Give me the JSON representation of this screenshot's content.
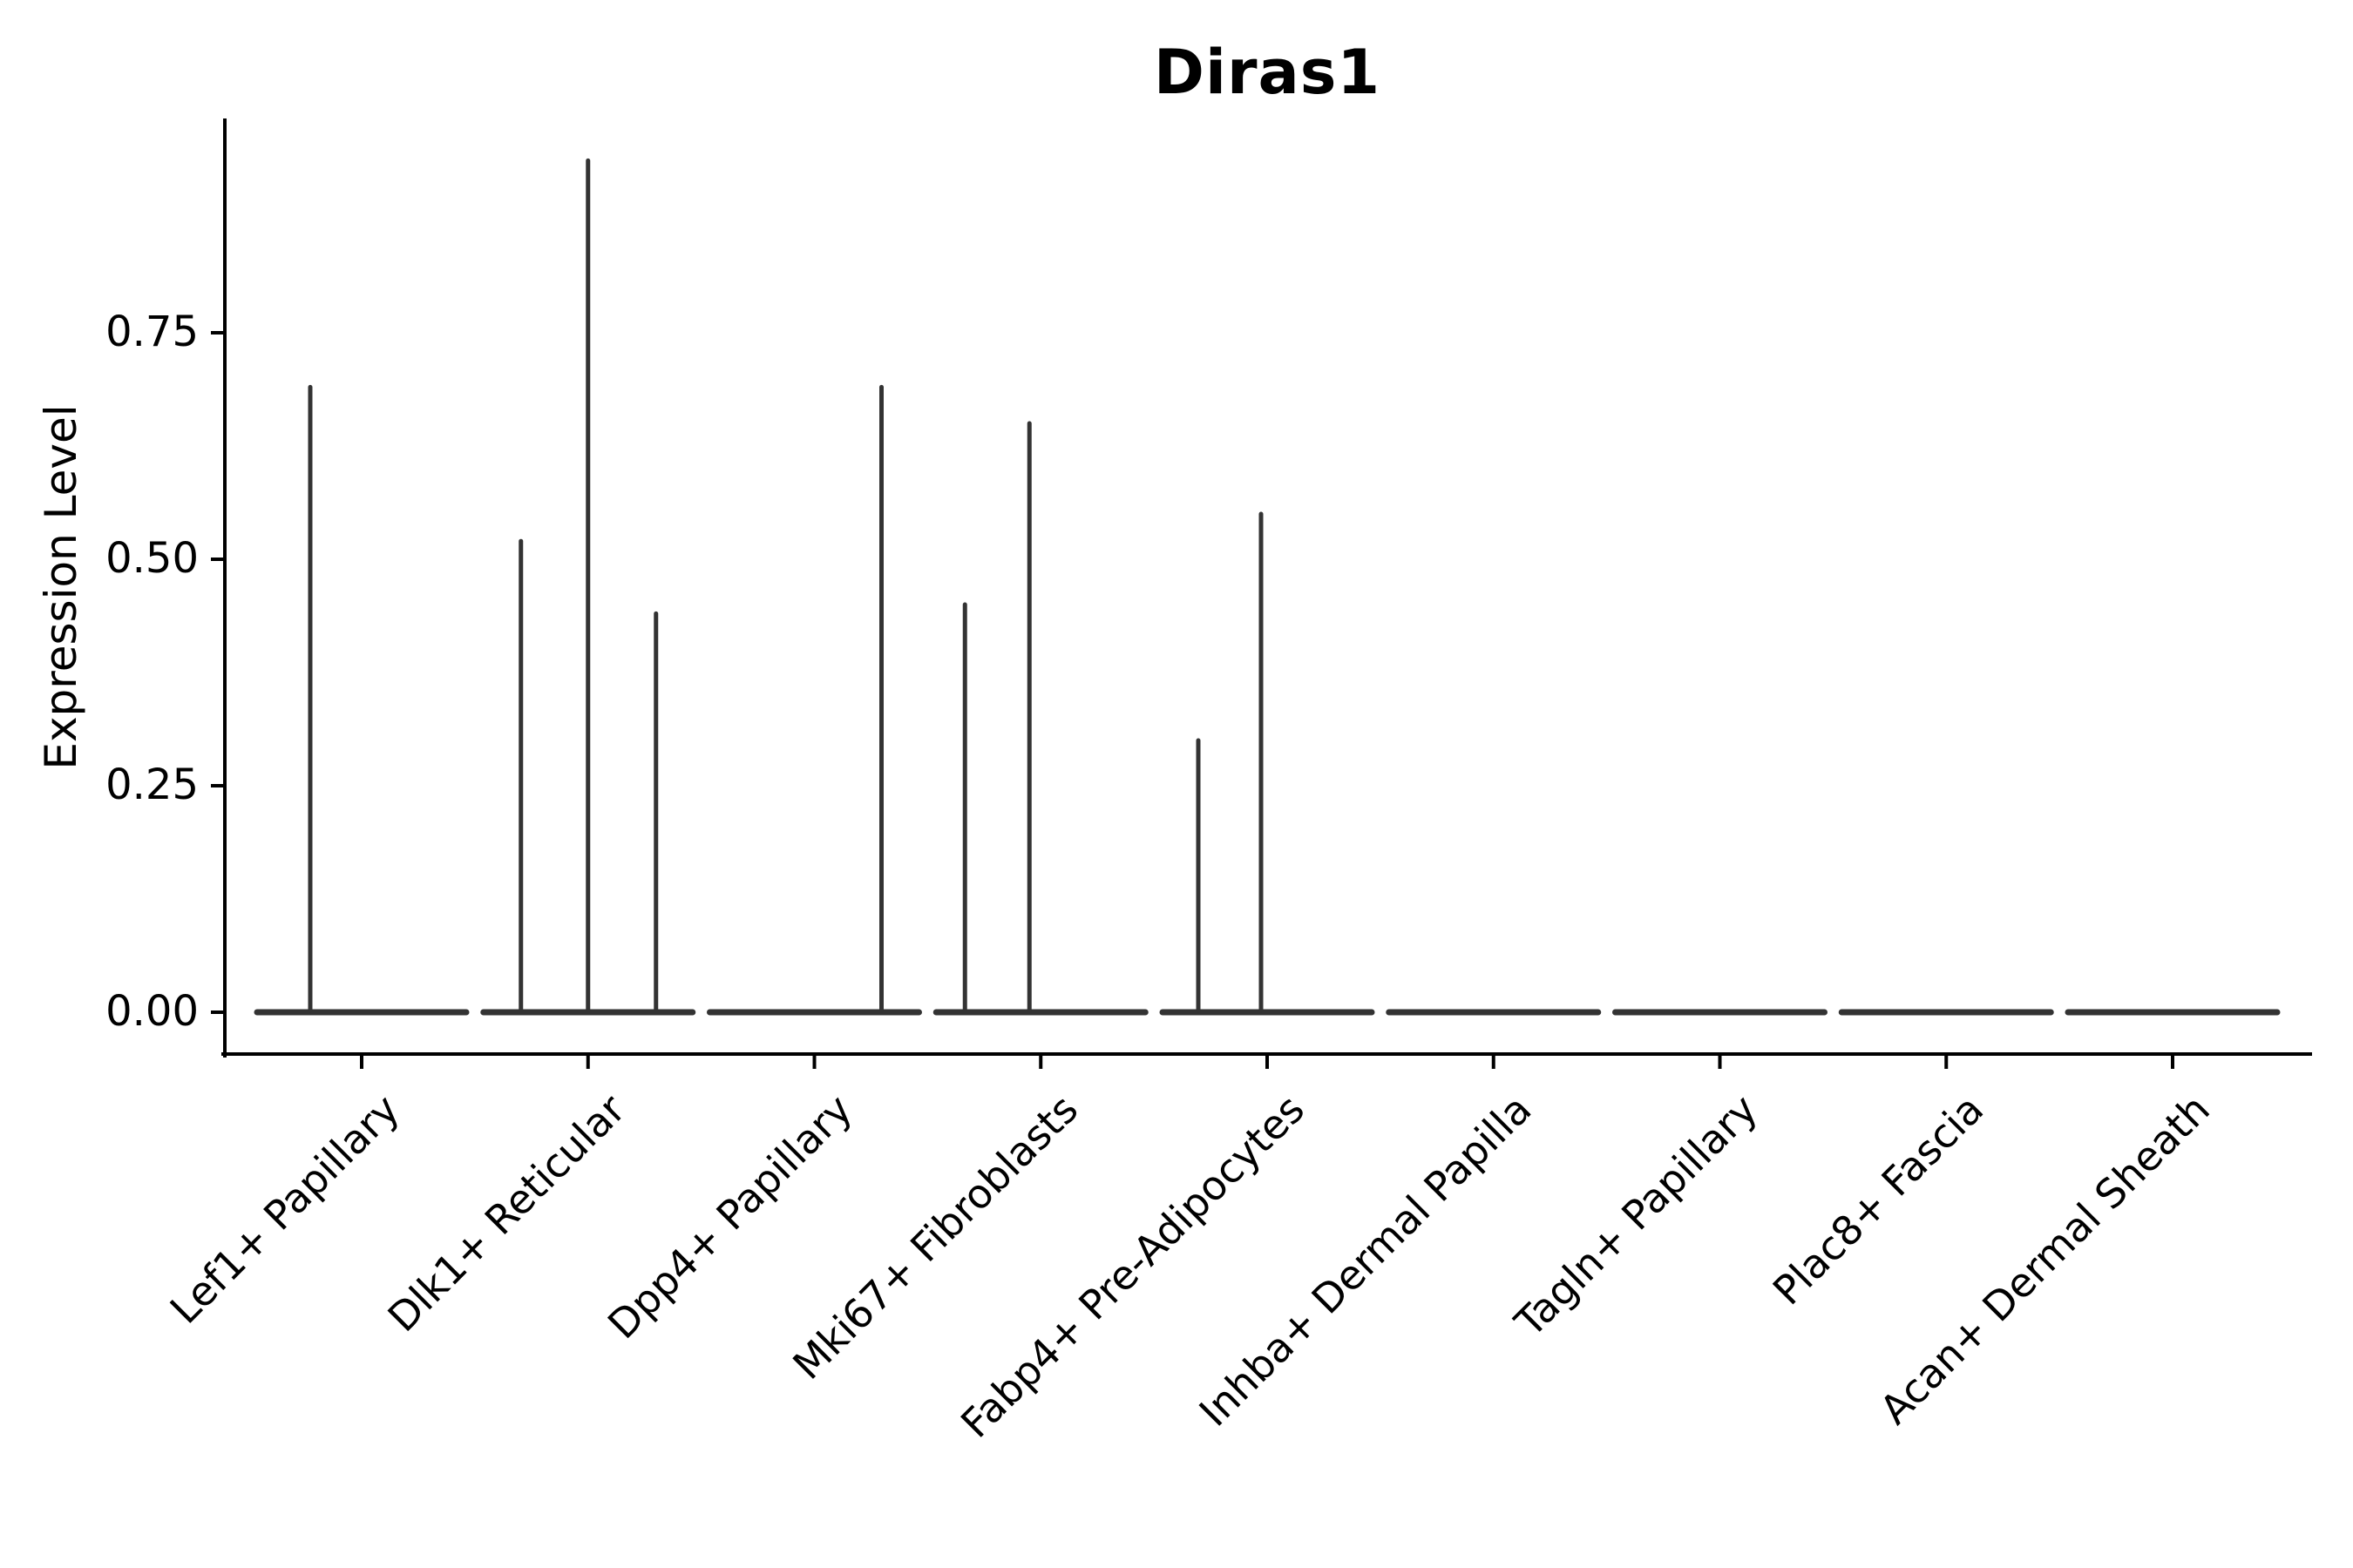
{
  "figure": {
    "background": "#ffffff"
  },
  "chart_data": {
    "type": "violin",
    "title": "Diras1",
    "xlabel": "",
    "ylabel": "Expression Level",
    "categories": [
      "Lef1+ Papillary",
      "Dlk1+ Reticular",
      "Dpp4+ Papillary",
      "Mki67+ Fibroblasts",
      "Fabp4+ Pre-Adipocytes",
      "Inhba+ Dermal Papilla",
      "Tagln+ Papillary",
      "Plac8+ Fascia",
      "Acan+ Dermal Sheath"
    ],
    "ylim": [
      0,
      0.985
    ],
    "ytick_values": [
      0,
      0.25,
      0.5,
      0.75
    ],
    "ytick_labels": [
      "0.00",
      "0.25",
      "0.50",
      "0.75"
    ],
    "grid": false,
    "legend": null,
    "series": [
      {
        "category": "Lef1+ Papillary",
        "baseline_value": 0,
        "spikes": [
          {
            "offset": -59,
            "value": 0.69
          }
        ]
      },
      {
        "category": "Dlk1+ Reticular",
        "baseline_value": 0,
        "spikes": [
          {
            "offset": -77,
            "value": 0.52
          },
          {
            "offset": 0,
            "value": 0.94
          },
          {
            "offset": 78,
            "value": 0.44
          }
        ]
      },
      {
        "category": "Dpp4+ Papillary",
        "baseline_value": 0,
        "spikes": [
          {
            "offset": 77,
            "value": 0.69
          }
        ]
      },
      {
        "category": "Mki67+ Fibroblasts",
        "baseline_value": 0,
        "spikes": [
          {
            "offset": -87,
            "value": 0.45
          },
          {
            "offset": -13,
            "value": 0.65
          }
        ]
      },
      {
        "category": "Fabp4+ Pre-Adipocytes",
        "baseline_value": 0,
        "spikes": [
          {
            "offset": -79,
            "value": 0.3
          },
          {
            "offset": -7,
            "value": 0.55
          }
        ]
      },
      {
        "category": "Inhba+ Dermal Papilla",
        "baseline_value": 0,
        "spikes": []
      },
      {
        "category": "Tagln+ Papillary",
        "baseline_value": 0,
        "spikes": []
      },
      {
        "category": "Plac8+ Fascia",
        "baseline_value": 0,
        "spikes": []
      },
      {
        "category": "Acan+ Dermal Sheath",
        "baseline_value": 0,
        "spikes": []
      }
    ],
    "colors": {
      "violin_line": "#333333",
      "axis": "#000000",
      "text": "#000000",
      "background": "#ffffff"
    }
  }
}
